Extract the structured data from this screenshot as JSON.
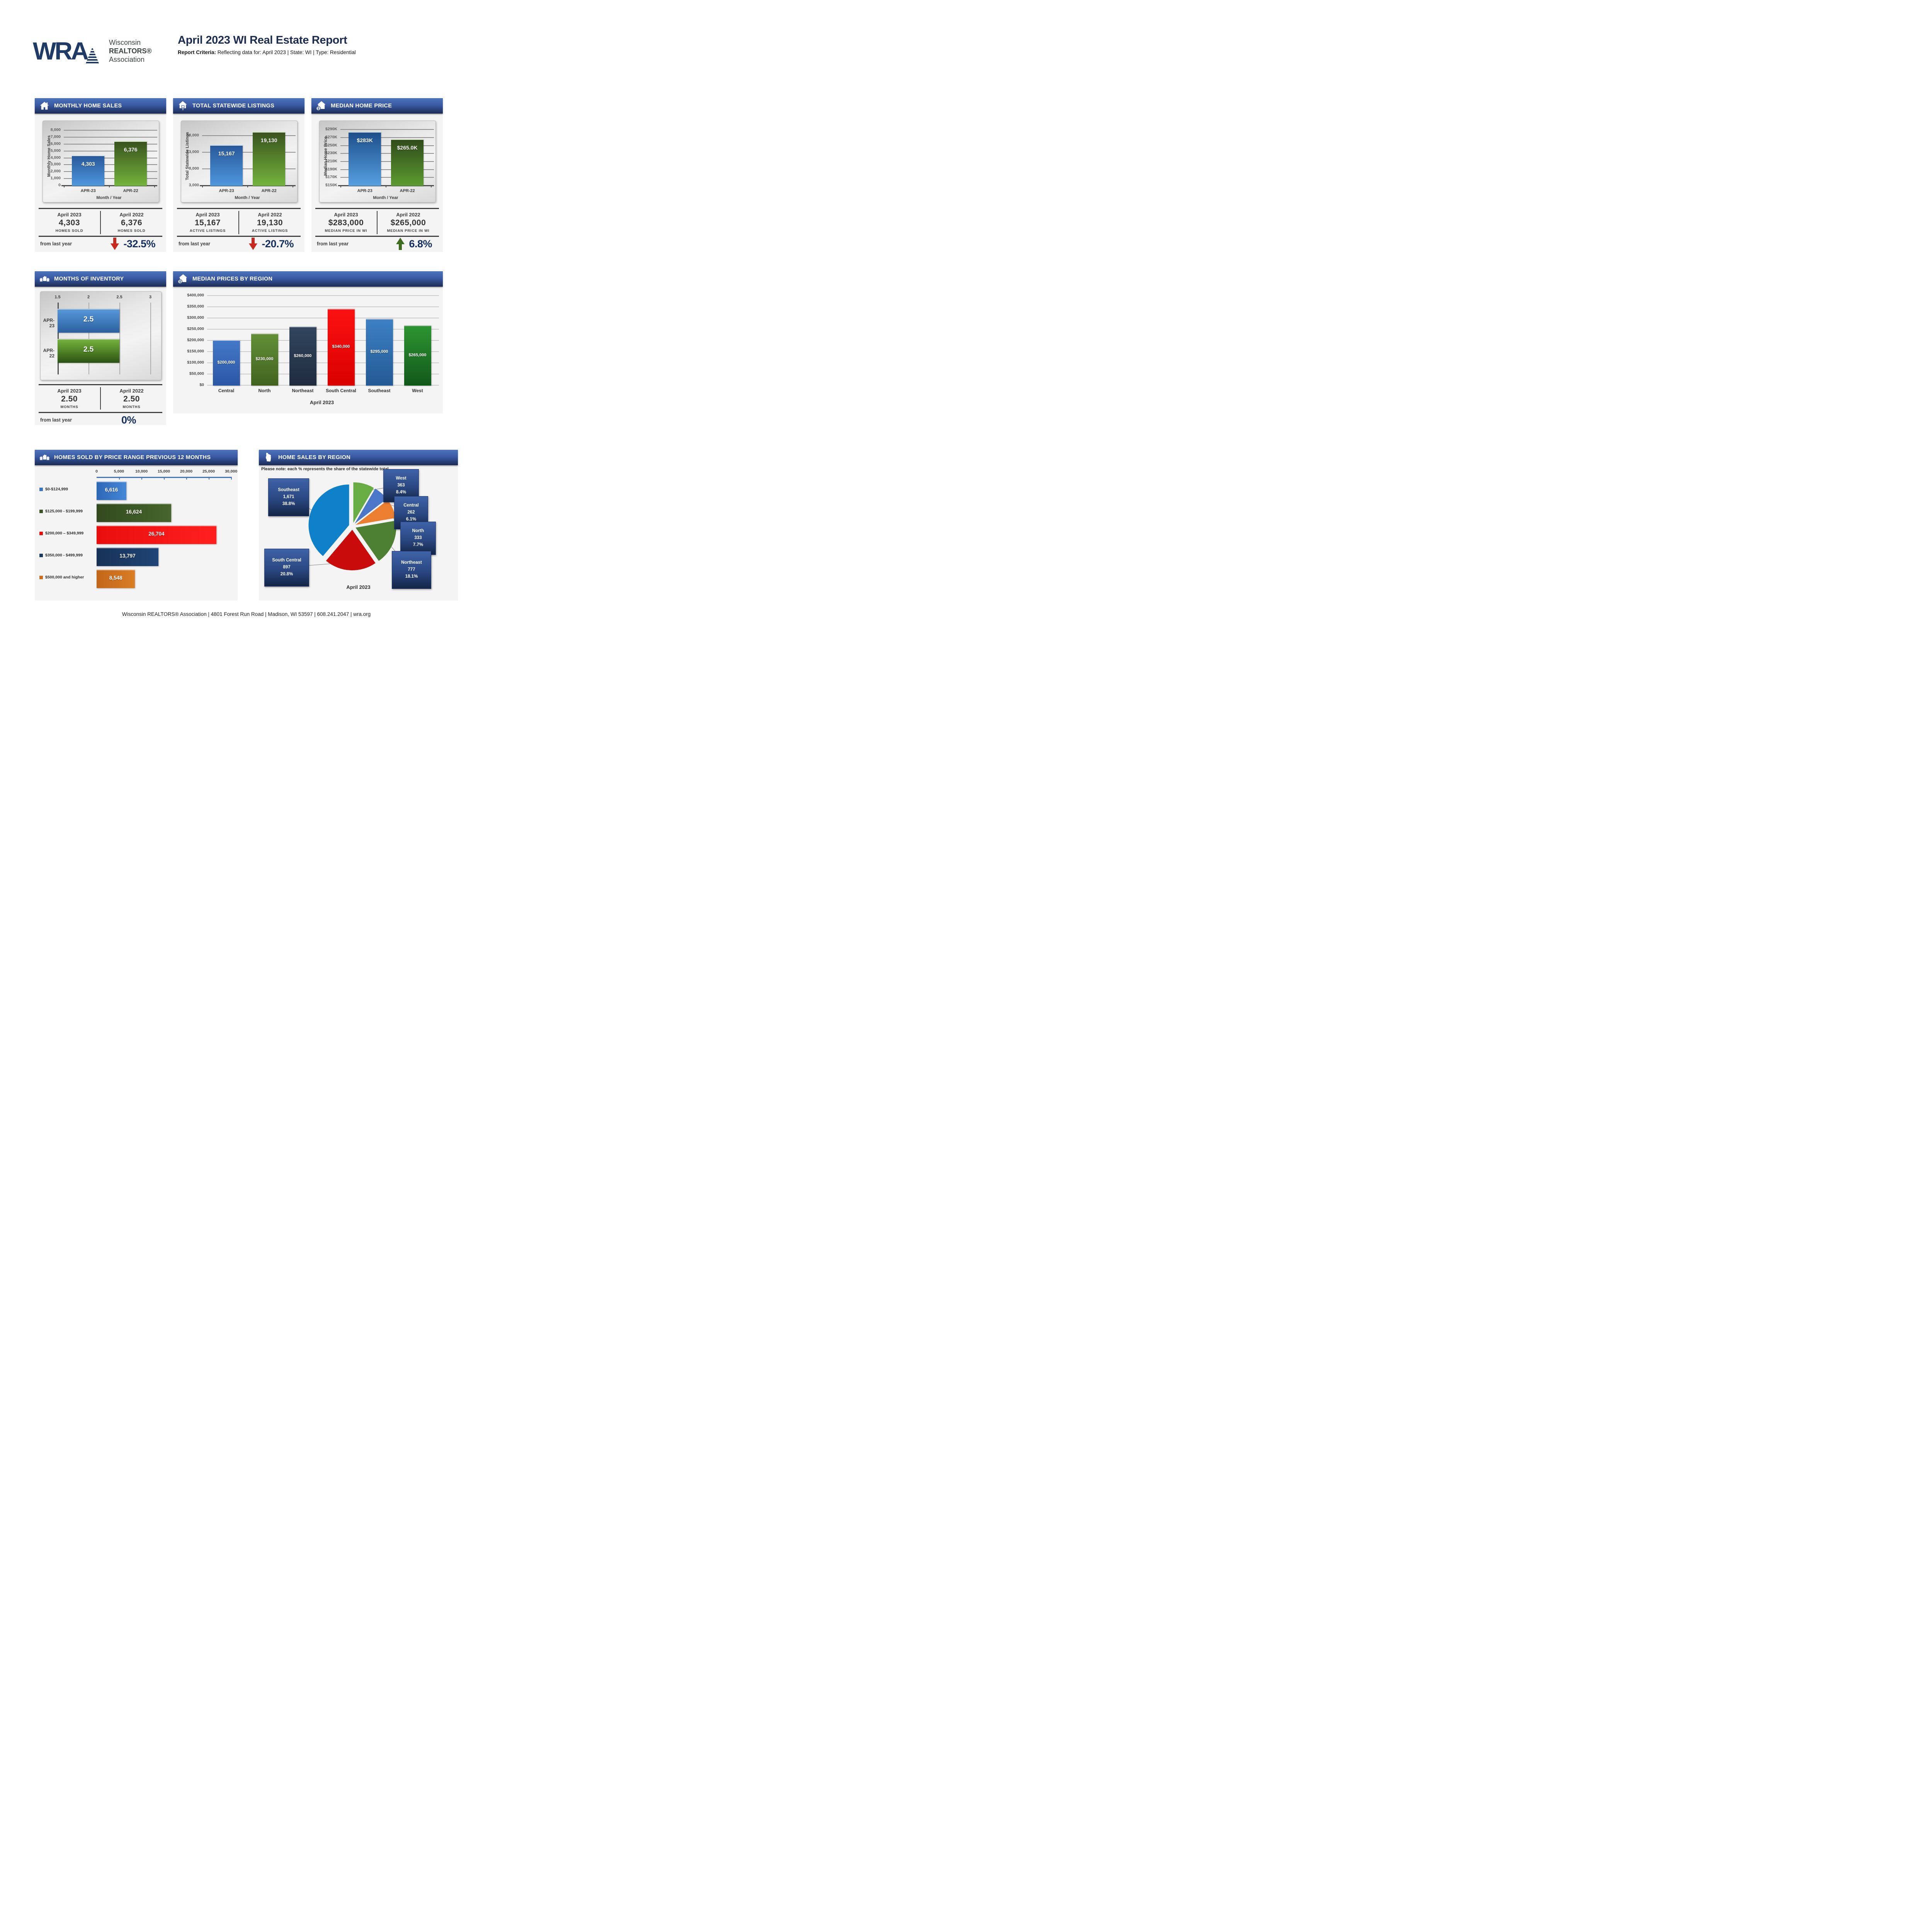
{
  "header": {
    "logo": "WRA",
    "org_lines": [
      "Wisconsin",
      "REALTORS®",
      "Association"
    ],
    "title": "April 2023 WI Real Estate Report",
    "criteria_label": "Report Criteria:",
    "criteria_rest": " Reflecting data for: April 2023 | State: WI | Type: Residential"
  },
  "footer": "Wisconsin REALTORS® Association | 4801 Forest Run Road | Madison, WI 53597 | 608.241.2047 | wra.org",
  "colors": {
    "header_bar_top": "#4d74bb",
    "header_bar_bottom": "#1b2c55",
    "accent_navy": "#15305f",
    "down_red": "#c9281f",
    "up_green": "#3f6b1f",
    "panel_bg": "#f4f4f5"
  },
  "panels": {
    "monthly_home_sales": {
      "title": "MONTHLY HOME SALES",
      "summary": {
        "col1": {
          "label": "April 2023",
          "value": "4,303",
          "caption": "HOMES SOLD"
        },
        "col2": {
          "label": "April 2022",
          "value": "6,376",
          "caption": "HOMES SOLD"
        },
        "change_label": "from last year",
        "change": "-32.5%",
        "direction": "down"
      }
    },
    "total_statewide_listings": {
      "title": "TOTAL STATEWIDE LISTINGS",
      "summary": {
        "col1": {
          "label": "April 2023",
          "value": "15,167",
          "caption": "ACTIVE LISTINGS"
        },
        "col2": {
          "label": "April 2022",
          "value": "19,130",
          "caption": "ACTIVE LISTINGS"
        },
        "change_label": "from last year",
        "change": "-20.7%",
        "direction": "down"
      }
    },
    "median_home_price": {
      "title": "MEDIAN HOME PRICE",
      "summary": {
        "col1": {
          "label": "April 2023",
          "value": "$283,000",
          "caption": "MEDIAN PRICE IN WI"
        },
        "col2": {
          "label": "April 2022",
          "value": "$265,000",
          "caption": "MEDIAN PRICE IN WI"
        },
        "change_label": "from last year",
        "change": "6.8%",
        "direction": "up"
      }
    },
    "months_of_inventory": {
      "title": "MONTHS OF INVENTORY",
      "summary": {
        "col1": {
          "label": "April 2023",
          "value": "2.50",
          "caption": "MONTHS"
        },
        "col2": {
          "label": "April 2022",
          "value": "2.50",
          "caption": "MONTHS"
        },
        "change_label": "from last year",
        "change": "0%",
        "direction": "none"
      }
    },
    "median_prices_by_region": {
      "title": "MEDIAN PRICES BY REGION"
    },
    "homes_sold_by_price_range": {
      "title": "HOMES SOLD BY PRICE RANGE PREVIOUS 12 MONTHS"
    },
    "home_sales_by_region": {
      "title": "HOME SALES BY REGION",
      "note": "Please note: each % represents the share of the statewide total.",
      "caption": "April 2023"
    }
  },
  "chart_data": [
    {
      "id": "monthly_home_sales",
      "type": "bar",
      "title": "Monthly Home Sales",
      "categories": [
        "APR-23",
        "APR-22"
      ],
      "values": [
        4303,
        6376
      ],
      "value_labels": [
        "4,303",
        "6,376"
      ],
      "bar_colors": [
        [
          "#29599b",
          "#4f97dd"
        ],
        [
          "#39541e",
          "#74b43c"
        ]
      ],
      "ylabel": "Monthly Home Sales",
      "xlabel": "Month / Year",
      "ylim": [
        0,
        8000
      ],
      "yticks": [
        0,
        1000,
        2000,
        3000,
        4000,
        5000,
        6000,
        7000,
        8000
      ],
      "ytick_labels": [
        "0",
        "1,000",
        "2,000",
        "3,000",
        "4,000",
        "5,000",
        "6,000",
        "7,000",
        "8,000"
      ]
    },
    {
      "id": "total_statewide_listings",
      "type": "bar",
      "title": "Total Statewide Listings",
      "categories": [
        "APR-23",
        "APR-22"
      ],
      "values": [
        15167,
        19130
      ],
      "value_labels": [
        "15,167",
        "19,130"
      ],
      "bar_colors": [
        [
          "#29599b",
          "#4f97dd"
        ],
        [
          "#39541e",
          "#74b43c"
        ]
      ],
      "ylabel": "Total Statewide Listings",
      "xlabel": "Month / Year",
      "ylim": [
        3000,
        18000
      ],
      "yticks": [
        3000,
        8000,
        13000,
        18000
      ],
      "ytick_labels": [
        "3,000",
        "8,000",
        "13,000",
        "18,000"
      ]
    },
    {
      "id": "median_home_price",
      "type": "bar",
      "title": "Median Home Price",
      "categories": [
        "APR-23",
        "APR-22"
      ],
      "values": [
        283000,
        265000
      ],
      "value_labels": [
        "$283K",
        "$265.0K"
      ],
      "bar_colors": [
        [
          "#1d4f8c",
          "#57a0e0"
        ],
        [
          "#2f4b1a",
          "#5d9c31"
        ]
      ],
      "ylabel": "Median Home Price",
      "xlabel": "Month / Year",
      "ylim": [
        150000,
        290000
      ],
      "yticks": [
        150000,
        170000,
        190000,
        210000,
        230000,
        250000,
        270000,
        290000
      ],
      "ytick_labels": [
        "$150K",
        "$170K",
        "$190K",
        "$210K",
        "$230K",
        "$250K",
        "$270K",
        "$290K"
      ]
    },
    {
      "id": "months_of_inventory",
      "type": "bar-horizontal",
      "title": "Months of Inventory",
      "categories": [
        "APR-23",
        "APR-22"
      ],
      "values": [
        2.5,
        2.5
      ],
      "value_labels": [
        "2.5",
        "2.5"
      ],
      "bar_colors": [
        [
          "#5598d8",
          "#2c5f9f"
        ],
        [
          "#74b23c",
          "#2c5313"
        ]
      ],
      "xlim": [
        1.5,
        3
      ],
      "xticks": [
        1.5,
        2,
        2.5,
        3
      ],
      "xtick_labels": [
        "1.5",
        "2",
        "2.5",
        "3"
      ]
    },
    {
      "id": "median_prices_by_region",
      "type": "bar",
      "title": "Median Prices by Region",
      "categories": [
        "Central",
        "North",
        "Northeast",
        "South Central",
        "Southeast",
        "West"
      ],
      "values": [
        200000,
        230000,
        260000,
        340000,
        295000,
        265000
      ],
      "value_labels": [
        "$200,000",
        "$230,000",
        "$260,000",
        "$340,000",
        "$295,000",
        "$265,000"
      ],
      "bar_colors": [
        [
          "#4478c8",
          "#2b57a4"
        ],
        [
          "#628f36",
          "#41631f"
        ],
        [
          "#31455e",
          "#1f2c3e"
        ],
        [
          "#fb1111",
          "#d90000"
        ],
        [
          "#3c80c4",
          "#235a94"
        ],
        [
          "#2d9431",
          "#11581a"
        ]
      ],
      "xlabel": "April 2023",
      "ylim": [
        0,
        400000
      ],
      "yticks": [
        0,
        50000,
        100000,
        150000,
        200000,
        250000,
        300000,
        350000,
        400000
      ],
      "ytick_labels": [
        "$0",
        "$50,000",
        "$100,000",
        "$150,000",
        "$200,000",
        "$250,000",
        "$300,000",
        "$350,000",
        "$400,000"
      ]
    },
    {
      "id": "homes_sold_by_price_range",
      "type": "bar-horizontal",
      "title": "Homes Sold by Price Range Previous 12 Months",
      "categories": [
        "$0-$124,999",
        "$125,000 - $199,999",
        "$200,000 – $349,999",
        "$350,000 - $499,999",
        "$500,000 and higher"
      ],
      "values": [
        6616,
        16624,
        26704,
        13797,
        8548
      ],
      "value_labels": [
        "6,616",
        "16,624",
        "26,704",
        "13,797",
        "8,548"
      ],
      "bar_colors": [
        [
          "#2d67b6",
          "#4687d8"
        ],
        [
          "#324a1e",
          "#46662c"
        ],
        [
          "#ea0e0e",
          "#ff1f1f"
        ],
        [
          "#173257",
          "#1f4476"
        ],
        [
          "#c2661b",
          "#da7d24"
        ]
      ],
      "legend_colors": [
        "#3a76c8",
        "#3b5423",
        "#ee0d0d",
        "#1a3a66",
        "#cc6e1e"
      ],
      "xlim": [
        0,
        30000
      ],
      "xticks": [
        0,
        5000,
        10000,
        15000,
        20000,
        25000,
        30000
      ],
      "xtick_labels": [
        "0",
        "5,000",
        "10,000",
        "15,000",
        "20,000",
        "25,000",
        "30,000"
      ]
    },
    {
      "id": "home_sales_by_region",
      "type": "pie",
      "title": "April 2023",
      "slices": [
        {
          "name": "West",
          "value": 363,
          "display": "363",
          "percent": "8.4%",
          "color": "#68ac44"
        },
        {
          "name": "Central",
          "value": 262,
          "display": "262",
          "percent": "6.1%",
          "color": "#4b77c9"
        },
        {
          "name": "North",
          "value": 333,
          "display": "333",
          "percent": "7.7%",
          "color": "#ec7e30"
        },
        {
          "name": "Northeast",
          "value": 777,
          "display": "777",
          "percent": "18.1%",
          "color": "#4d8033"
        },
        {
          "name": "South Central",
          "value": 897,
          "display": "897",
          "percent": "20.8%",
          "color": "#ca0b0b"
        },
        {
          "name": "Southeast",
          "value": 1671,
          "display": "1,671",
          "percent": "38.8%",
          "color": "#0f80ca"
        }
      ]
    }
  ]
}
